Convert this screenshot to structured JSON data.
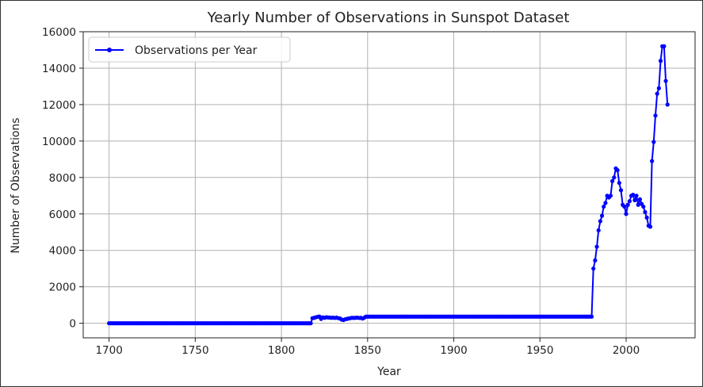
{
  "chart_data": {
    "type": "line",
    "title": "Yearly Number of Observations in Sunspot Dataset",
    "xlabel": "Year",
    "ylabel": "Number of Observations",
    "xlim": [
      1685,
      2040
    ],
    "ylim": [
      -800,
      16000
    ],
    "xticks": [
      "1700",
      "1750",
      "1800",
      "1850",
      "1900",
      "1950",
      "2000"
    ],
    "yticks": [
      "0",
      "2000",
      "4000",
      "6000",
      "8000",
      "10000",
      "12000",
      "14000",
      "16000"
    ],
    "grid": true,
    "legend": "top-left",
    "line_color": "#0000ff",
    "series": [
      {
        "name": "Observations per Year",
        "segments": [
          {
            "from": 1700,
            "to": 1817,
            "step": 1,
            "value": 0
          },
          {
            "from": 1849,
            "to": 1980,
            "step": 1,
            "value": 365
          }
        ],
        "points": [
          [
            1818,
            280
          ],
          [
            1819,
            300
          ],
          [
            1820,
            330
          ],
          [
            1821,
            350
          ],
          [
            1822,
            370
          ],
          [
            1823,
            240
          ],
          [
            1824,
            320
          ],
          [
            1825,
            300
          ],
          [
            1826,
            330
          ],
          [
            1827,
            320
          ],
          [
            1828,
            310
          ],
          [
            1829,
            300
          ],
          [
            1830,
            310
          ],
          [
            1831,
            290
          ],
          [
            1832,
            310
          ],
          [
            1833,
            280
          ],
          [
            1834,
            260
          ],
          [
            1835,
            200
          ],
          [
            1836,
            180
          ],
          [
            1837,
            220
          ],
          [
            1838,
            240
          ],
          [
            1839,
            260
          ],
          [
            1840,
            280
          ],
          [
            1841,
            300
          ],
          [
            1842,
            290
          ],
          [
            1843,
            300
          ],
          [
            1844,
            310
          ],
          [
            1845,
            290
          ],
          [
            1846,
            300
          ],
          [
            1847,
            260
          ],
          [
            1848,
            300
          ],
          [
            1981,
            3000
          ],
          [
            1982,
            3450
          ],
          [
            1983,
            4200
          ],
          [
            1984,
            5100
          ],
          [
            1985,
            5600
          ],
          [
            1986,
            5900
          ],
          [
            1987,
            6400
          ],
          [
            1988,
            6600
          ],
          [
            1989,
            7000
          ],
          [
            1990,
            6900
          ],
          [
            1991,
            7000
          ],
          [
            1992,
            7800
          ],
          [
            1993,
            8000
          ],
          [
            1994,
            8500
          ],
          [
            1995,
            8400
          ],
          [
            1996,
            7700
          ],
          [
            1997,
            7300
          ],
          [
            1998,
            6500
          ],
          [
            1999,
            6400
          ],
          [
            2000,
            6000
          ],
          [
            2001,
            6500
          ],
          [
            2002,
            6700
          ],
          [
            2003,
            7000
          ],
          [
            2004,
            7050
          ],
          [
            2005,
            6750
          ],
          [
            2006,
            7000
          ],
          [
            2007,
            6500
          ],
          [
            2008,
            6800
          ],
          [
            2009,
            6550
          ],
          [
            2010,
            6400
          ],
          [
            2011,
            6100
          ],
          [
            2012,
            5800
          ],
          [
            2013,
            5350
          ],
          [
            2014,
            5300
          ],
          [
            2015,
            8900
          ],
          [
            2016,
            9950
          ],
          [
            2017,
            11400
          ],
          [
            2018,
            12600
          ],
          [
            2019,
            12900
          ],
          [
            2020,
            14400
          ],
          [
            2021,
            15200
          ],
          [
            2022,
            15200
          ],
          [
            2023,
            13300
          ],
          [
            2024,
            12000
          ]
        ]
      }
    ]
  }
}
